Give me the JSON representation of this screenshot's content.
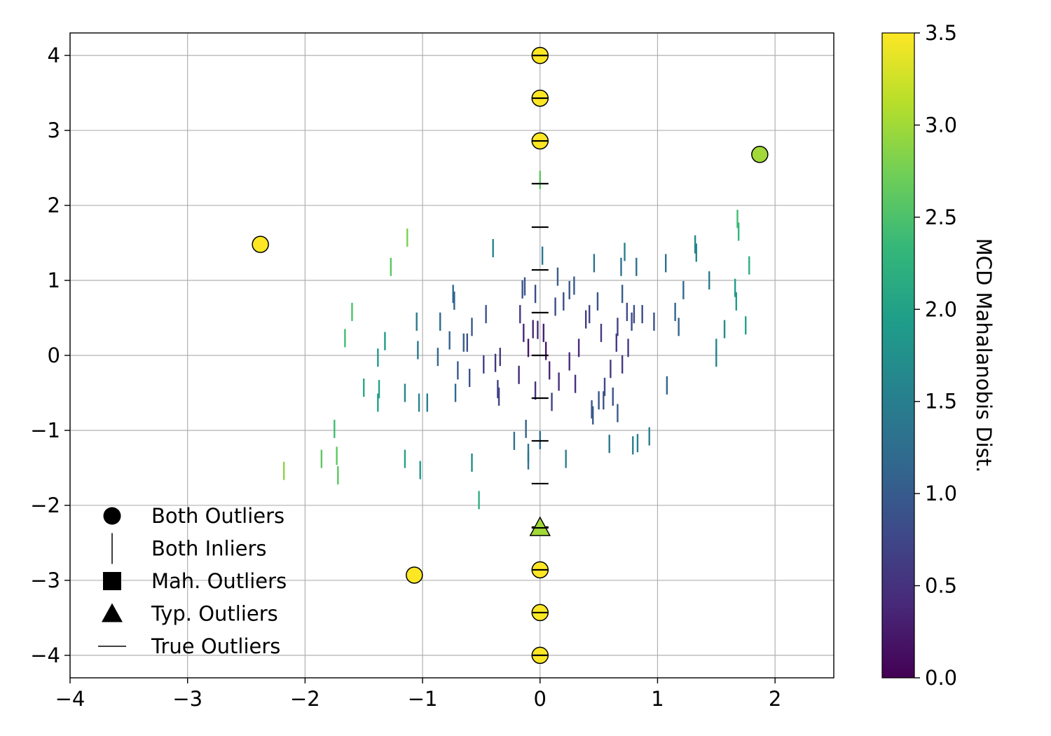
{
  "chart_data": {
    "type": "scatter",
    "title": "",
    "xlabel": "",
    "ylabel": "",
    "xlim": [
      -4,
      2.5
    ],
    "ylim": [
      -4.3,
      4.3
    ],
    "xticks": [
      -4,
      -3,
      -2,
      -1,
      0,
      1,
      2
    ],
    "xtick_labels": [
      "−4",
      "−3",
      "−2",
      "−1",
      "0",
      "1",
      "2"
    ],
    "yticks": [
      -4,
      -3,
      -2,
      -1,
      0,
      1,
      2,
      3,
      4
    ],
    "ytick_labels": [
      "−4",
      "−3",
      "−2",
      "−1",
      "0",
      "1",
      "2",
      "3",
      "4"
    ],
    "grid": true,
    "legend_position": "lower-left",
    "colorbar": {
      "label": "MCD Mahalanobis Dist.",
      "min": 0.0,
      "max": 3.5,
      "ticks": [
        0.0,
        0.5,
        1.0,
        1.5,
        2.0,
        2.5,
        3.0,
        3.5
      ],
      "tick_labels": [
        "0.0",
        "0.5",
        "1.0",
        "1.5",
        "2.0",
        "2.5",
        "3.0",
        "3.5"
      ],
      "colormap": "viridis"
    },
    "legend": [
      {
        "label": "Both Outliers",
        "marker": "circle"
      },
      {
        "label": "Both Inliers",
        "marker": "vline"
      },
      {
        "label": "Mah. Outliers",
        "marker": "square"
      },
      {
        "label": "Typ. Outliers",
        "marker": "triangle"
      },
      {
        "label": "True Outliers",
        "marker": "hline"
      }
    ],
    "true_outliers": [
      [
        0,
        4.0
      ],
      [
        0,
        3.43
      ],
      [
        0,
        2.86
      ],
      [
        0,
        2.29
      ],
      [
        0,
        1.71
      ],
      [
        0,
        1.14
      ],
      [
        0,
        0.57
      ],
      [
        0,
        0.0
      ],
      [
        0,
        -0.57
      ],
      [
        0,
        -1.14
      ],
      [
        0,
        -1.71
      ],
      [
        0,
        -2.29
      ],
      [
        0,
        -2.86
      ],
      [
        0,
        -3.43
      ],
      [
        0,
        -4.0
      ]
    ],
    "both_outliers": [
      {
        "x": 0,
        "y": 4.0,
        "d": 3.5
      },
      {
        "x": 0,
        "y": 3.43,
        "d": 3.5
      },
      {
        "x": 0,
        "y": 2.86,
        "d": 3.5
      },
      {
        "x": 0,
        "y": -2.86,
        "d": 3.5
      },
      {
        "x": 0,
        "y": -3.43,
        "d": 3.5
      },
      {
        "x": 0,
        "y": -4.0,
        "d": 3.5
      },
      {
        "x": -2.38,
        "y": 1.48,
        "d": 3.5
      },
      {
        "x": -1.07,
        "y": -2.93,
        "d": 3.5
      },
      {
        "x": 1.87,
        "y": 2.68,
        "d": 3.0
      }
    ],
    "typ_outliers": [
      {
        "x": 0,
        "y": -2.3,
        "d": 3.0
      }
    ],
    "both_inliers": [
      {
        "x": -2.18,
        "y": -1.54,
        "d": 2.9
      },
      {
        "x": -1.86,
        "y": -1.38,
        "d": 2.6
      },
      {
        "x": -1.73,
        "y": -1.34,
        "d": 2.6
      },
      {
        "x": -1.72,
        "y": -1.6,
        "d": 2.6
      },
      {
        "x": -1.75,
        "y": -0.98,
        "d": 2.4
      },
      {
        "x": -1.66,
        "y": 0.23,
        "d": 2.4
      },
      {
        "x": -1.6,
        "y": 0.58,
        "d": 2.5
      },
      {
        "x": -1.5,
        "y": -0.43,
        "d": 2.1
      },
      {
        "x": -1.37,
        "y": -0.45,
        "d": 2.0
      },
      {
        "x": -1.38,
        "y": -0.63,
        "d": 2.0
      },
      {
        "x": -1.38,
        "y": -0.03,
        "d": 1.9
      },
      {
        "x": -1.32,
        "y": 0.19,
        "d": 1.9
      },
      {
        "x": -1.27,
        "y": 1.18,
        "d": 2.6
      },
      {
        "x": -1.13,
        "y": 1.57,
        "d": 2.8
      },
      {
        "x": -1.15,
        "y": -0.5,
        "d": 1.6
      },
      {
        "x": -1.15,
        "y": -1.38,
        "d": 2.0
      },
      {
        "x": -1.02,
        "y": -1.53,
        "d": 1.9
      },
      {
        "x": -1.04,
        "y": 0.07,
        "d": 1.4
      },
      {
        "x": -1.05,
        "y": 0.45,
        "d": 1.4
      },
      {
        "x": -1.03,
        "y": -0.63,
        "d": 1.6
      },
      {
        "x": -0.96,
        "y": -0.63,
        "d": 1.5
      },
      {
        "x": -0.87,
        "y": -0.02,
        "d": 1.2
      },
      {
        "x": -0.85,
        "y": 0.45,
        "d": 1.2
      },
      {
        "x": -0.77,
        "y": 0.2,
        "d": 1.1
      },
      {
        "x": -0.74,
        "y": 0.82,
        "d": 1.2
      },
      {
        "x": -0.73,
        "y": 0.73,
        "d": 1.1
      },
      {
        "x": -0.7,
        "y": -0.2,
        "d": 1.0
      },
      {
        "x": -0.72,
        "y": -0.5,
        "d": 1.2
      },
      {
        "x": -0.65,
        "y": 0.17,
        "d": 1.0
      },
      {
        "x": -0.62,
        "y": 0.17,
        "d": 0.9
      },
      {
        "x": -0.6,
        "y": -0.3,
        "d": 0.9
      },
      {
        "x": -0.58,
        "y": 0.38,
        "d": 1.0
      },
      {
        "x": -0.58,
        "y": -1.43,
        "d": 1.7
      },
      {
        "x": -0.52,
        "y": -1.93,
        "d": 2.2
      },
      {
        "x": -0.48,
        "y": -0.12,
        "d": 0.7
      },
      {
        "x": -0.46,
        "y": 0.55,
        "d": 0.9
      },
      {
        "x": -0.4,
        "y": 1.43,
        "d": 1.6
      },
      {
        "x": -0.38,
        "y": -0.1,
        "d": 0.6
      },
      {
        "x": -0.36,
        "y": -0.45,
        "d": 0.7
      },
      {
        "x": -0.35,
        "y": -0.55,
        "d": 0.7
      },
      {
        "x": -0.34,
        "y": -0.02,
        "d": 0.6
      },
      {
        "x": -0.22,
        "y": -1.14,
        "d": 1.3
      },
      {
        "x": -0.18,
        "y": -0.26,
        "d": 0.4
      },
      {
        "x": -0.17,
        "y": 0.55,
        "d": 0.6
      },
      {
        "x": -0.14,
        "y": 0.3,
        "d": 0.4
      },
      {
        "x": -0.15,
        "y": 0.88,
        "d": 0.9
      },
      {
        "x": -0.13,
        "y": 0.92,
        "d": 0.9
      },
      {
        "x": -0.12,
        "y": -0.98,
        "d": 1.1
      },
      {
        "x": -0.1,
        "y": -1.3,
        "d": 1.3
      },
      {
        "x": -0.1,
        "y": -1.4,
        "d": 1.3
      },
      {
        "x": -0.1,
        "y": 0.1,
        "d": 0.2
      },
      {
        "x": -0.06,
        "y": 0.35,
        "d": 0.4
      },
      {
        "x": -0.04,
        "y": 0.82,
        "d": 0.8
      },
      {
        "x": -0.04,
        "y": -0.47,
        "d": 0.5
      },
      {
        "x": -0.02,
        "y": 0.34,
        "d": 0.4
      },
      {
        "x": 0.0,
        "y": -1.13,
        "d": 1.2
      },
      {
        "x": 0.0,
        "y": 2.34,
        "d": 2.6
      },
      {
        "x": 0.03,
        "y": 0.3,
        "d": 0.3
      },
      {
        "x": 0.02,
        "y": 1.33,
        "d": 1.4
      },
      {
        "x": 0.05,
        "y": 0.06,
        "d": 0.2
      },
      {
        "x": 0.08,
        "y": -0.2,
        "d": 0.4
      },
      {
        "x": 0.1,
        "y": -0.62,
        "d": 0.7
      },
      {
        "x": 0.13,
        "y": 0.65,
        "d": 0.8
      },
      {
        "x": 0.15,
        "y": 1.05,
        "d": 1.0
      },
      {
        "x": 0.16,
        "y": -0.35,
        "d": 0.5
      },
      {
        "x": 0.2,
        "y": 0.72,
        "d": 0.8
      },
      {
        "x": 0.22,
        "y": -1.38,
        "d": 1.5
      },
      {
        "x": 0.25,
        "y": 0.87,
        "d": 0.9
      },
      {
        "x": 0.25,
        "y": -0.08,
        "d": 0.4
      },
      {
        "x": 0.29,
        "y": 0.93,
        "d": 1.0
      },
      {
        "x": 0.3,
        "y": -0.38,
        "d": 0.5
      },
      {
        "x": 0.33,
        "y": 0.1,
        "d": 0.4
      },
      {
        "x": 0.39,
        "y": 0.48,
        "d": 0.6
      },
      {
        "x": 0.42,
        "y": 0.55,
        "d": 0.7
      },
      {
        "x": 0.44,
        "y": -0.72,
        "d": 0.9
      },
      {
        "x": 0.45,
        "y": -0.8,
        "d": 1.0
      },
      {
        "x": 0.46,
        "y": 1.23,
        "d": 1.3
      },
      {
        "x": 0.49,
        "y": 0.72,
        "d": 0.9
      },
      {
        "x": 0.5,
        "y": -0.6,
        "d": 0.9
      },
      {
        "x": 0.52,
        "y": 0.3,
        "d": 0.6
      },
      {
        "x": 0.54,
        "y": -0.6,
        "d": 0.9
      },
      {
        "x": 0.55,
        "y": -0.42,
        "d": 0.8
      },
      {
        "x": 0.59,
        "y": -1.18,
        "d": 1.4
      },
      {
        "x": 0.6,
        "y": -0.18,
        "d": 0.6
      },
      {
        "x": 0.62,
        "y": -0.55,
        "d": 0.9
      },
      {
        "x": 0.65,
        "y": 0.17,
        "d": 0.6
      },
      {
        "x": 0.66,
        "y": -0.77,
        "d": 1.0
      },
      {
        "x": 0.66,
        "y": 0.38,
        "d": 0.7
      },
      {
        "x": 0.69,
        "y": 1.18,
        "d": 1.3
      },
      {
        "x": 0.7,
        "y": -0.12,
        "d": 0.6
      },
      {
        "x": 0.7,
        "y": 0.82,
        "d": 1.0
      },
      {
        "x": 0.72,
        "y": 1.38,
        "d": 1.5
      },
      {
        "x": 0.74,
        "y": 0.58,
        "d": 0.8
      },
      {
        "x": 0.75,
        "y": 0.1,
        "d": 0.6
      },
      {
        "x": 0.78,
        "y": 0.45,
        "d": 0.8
      },
      {
        "x": 0.79,
        "y": -1.2,
        "d": 1.5
      },
      {
        "x": 0.8,
        "y": 0.55,
        "d": 0.8
      },
      {
        "x": 0.82,
        "y": 1.18,
        "d": 1.3
      },
      {
        "x": 0.83,
        "y": -1.17,
        "d": 1.5
      },
      {
        "x": 0.87,
        "y": 0.55,
        "d": 0.8
      },
      {
        "x": 0.93,
        "y": -1.08,
        "d": 1.5
      },
      {
        "x": 0.97,
        "y": 0.45,
        "d": 0.9
      },
      {
        "x": 1.07,
        "y": 1.23,
        "d": 1.3
      },
      {
        "x": 1.08,
        "y": -0.4,
        "d": 1.1
      },
      {
        "x": 1.15,
        "y": 0.58,
        "d": 1.1
      },
      {
        "x": 1.18,
        "y": 0.38,
        "d": 1.1
      },
      {
        "x": 1.22,
        "y": 0.87,
        "d": 1.2
      },
      {
        "x": 1.32,
        "y": 1.48,
        "d": 1.6
      },
      {
        "x": 1.33,
        "y": 1.37,
        "d": 1.6
      },
      {
        "x": 1.44,
        "y": 1.0,
        "d": 1.5
      },
      {
        "x": 1.5,
        "y": 0.1,
        "d": 1.6
      },
      {
        "x": 1.5,
        "y": -0.03,
        "d": 1.6
      },
      {
        "x": 1.57,
        "y": 0.35,
        "d": 1.7
      },
      {
        "x": 1.66,
        "y": 0.9,
        "d": 1.9
      },
      {
        "x": 1.67,
        "y": 0.72,
        "d": 1.9
      },
      {
        "x": 1.68,
        "y": 1.82,
        "d": 2.4
      },
      {
        "x": 1.69,
        "y": 1.65,
        "d": 2.3
      },
      {
        "x": 1.75,
        "y": 0.4,
        "d": 2.0
      },
      {
        "x": 1.78,
        "y": 1.2,
        "d": 2.2
      }
    ]
  }
}
